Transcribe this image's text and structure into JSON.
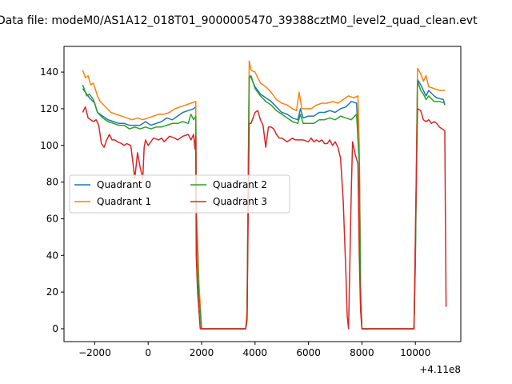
{
  "chart_data": {
    "type": "line",
    "title": "Data file: modeM0/AS1A12_018T01_9000005470_39388cztM0_level2_quad_clean.evt",
    "xlabel": "",
    "ylabel": "",
    "x_offset_label": "+4.11e8",
    "xlim": [
      -3150,
      11700
    ],
    "ylim": [
      -7,
      154
    ],
    "x_ticks": [
      -2000,
      0,
      2000,
      4000,
      6000,
      8000,
      10000
    ],
    "x_tick_labels": [
      "−2000",
      "0",
      "2000",
      "4000",
      "6000",
      "8000",
      "10000"
    ],
    "y_ticks": [
      0,
      20,
      40,
      60,
      80,
      100,
      120,
      140
    ],
    "y_tick_labels": [
      "0",
      "20",
      "40",
      "60",
      "80",
      "100",
      "120",
      "140"
    ],
    "grid": false,
    "legend_position": "center-left",
    "legend_columns": 2,
    "series": [
      {
        "name": "Quadrant 0",
        "color": "#1f77b4",
        "points": [
          [
            -2450,
            131
          ],
          [
            -2300,
            128
          ],
          [
            -2200,
            126
          ],
          [
            -2000,
            123
          ],
          [
            -1900,
            118
          ],
          [
            -1700,
            116
          ],
          [
            -1500,
            114
          ],
          [
            -1300,
            113
          ],
          [
            -1100,
            112
          ],
          [
            -900,
            112
          ],
          [
            -700,
            111
          ],
          [
            -500,
            111
          ],
          [
            -300,
            111
          ],
          [
            -100,
            113
          ],
          [
            100,
            111
          ],
          [
            300,
            112
          ],
          [
            500,
            113
          ],
          [
            700,
            115
          ],
          [
            900,
            114
          ],
          [
            1100,
            116
          ],
          [
            1300,
            118
          ],
          [
            1500,
            119
          ],
          [
            1700,
            120
          ],
          [
            1780,
            121
          ],
          [
            1800,
            65
          ],
          [
            1900,
            20
          ],
          [
            2000,
            0
          ],
          [
            3650,
            0
          ],
          [
            3700,
            8
          ],
          [
            3780,
            138
          ],
          [
            3850,
            137
          ],
          [
            4000,
            132
          ],
          [
            4200,
            128
          ],
          [
            4400,
            126
          ],
          [
            4600,
            124
          ],
          [
            4800,
            121
          ],
          [
            5000,
            118
          ],
          [
            5200,
            117
          ],
          [
            5400,
            115
          ],
          [
            5600,
            114
          ],
          [
            5700,
            120
          ],
          [
            5800,
            115
          ],
          [
            6000,
            116
          ],
          [
            6200,
            116
          ],
          [
            6400,
            118
          ],
          [
            6600,
            118
          ],
          [
            6800,
            119
          ],
          [
            7000,
            118
          ],
          [
            7200,
            120
          ],
          [
            7400,
            121
          ],
          [
            7600,
            124
          ],
          [
            7800,
            123
          ],
          [
            7900,
            95
          ],
          [
            7950,
            20
          ],
          [
            8000,
            0
          ],
          [
            9950,
            0
          ],
          [
            10000,
            40
          ],
          [
            10080,
            136
          ],
          [
            10200,
            133
          ],
          [
            10300,
            130
          ],
          [
            10400,
            127
          ],
          [
            10500,
            130
          ],
          [
            10700,
            127
          ],
          [
            10800,
            126
          ],
          [
            11050,
            125
          ],
          [
            11100,
            122
          ]
        ]
      },
      {
        "name": "Quadrant 1",
        "color": "#ff7f0e",
        "points": [
          [
            -2450,
            141
          ],
          [
            -2350,
            137
          ],
          [
            -2250,
            138
          ],
          [
            -2150,
            133
          ],
          [
            -2050,
            134
          ],
          [
            -1900,
            127
          ],
          [
            -1800,
            124
          ],
          [
            -1600,
            121
          ],
          [
            -1400,
            118
          ],
          [
            -1200,
            117
          ],
          [
            -1000,
            116
          ],
          [
            -800,
            115
          ],
          [
            -600,
            114
          ],
          [
            -400,
            115
          ],
          [
            -200,
            114
          ],
          [
            0,
            115
          ],
          [
            200,
            116
          ],
          [
            400,
            117
          ],
          [
            600,
            117
          ],
          [
            800,
            118
          ],
          [
            1000,
            120
          ],
          [
            1200,
            121
          ],
          [
            1400,
            122
          ],
          [
            1600,
            123
          ],
          [
            1780,
            124
          ],
          [
            1800,
            70
          ],
          [
            1900,
            25
          ],
          [
            2000,
            0
          ],
          [
            3650,
            0
          ],
          [
            3700,
            10
          ],
          [
            3780,
            146
          ],
          [
            3850,
            141
          ],
          [
            4000,
            140
          ],
          [
            4200,
            134
          ],
          [
            4400,
            132
          ],
          [
            4600,
            129
          ],
          [
            4800,
            125
          ],
          [
            5000,
            123
          ],
          [
            5200,
            122
          ],
          [
            5400,
            120
          ],
          [
            5550,
            119
          ],
          [
            5650,
            129
          ],
          [
            5750,
            120
          ],
          [
            5900,
            120
          ],
          [
            6100,
            120
          ],
          [
            6300,
            122
          ],
          [
            6500,
            123
          ],
          [
            6700,
            123
          ],
          [
            6900,
            124
          ],
          [
            7100,
            123
          ],
          [
            7300,
            125
          ],
          [
            7500,
            127
          ],
          [
            7700,
            126
          ],
          [
            7850,
            127
          ],
          [
            7900,
            100
          ],
          [
            7950,
            25
          ],
          [
            8000,
            0
          ],
          [
            9950,
            0
          ],
          [
            10000,
            45
          ],
          [
            10080,
            142
          ],
          [
            10200,
            139
          ],
          [
            10300,
            135
          ],
          [
            10400,
            138
          ],
          [
            10500,
            132
          ],
          [
            10700,
            131
          ],
          [
            10900,
            130
          ],
          [
            11100,
            130
          ]
        ]
      },
      {
        "name": "Quadrant 2",
        "color": "#2ca02c",
        "points": [
          [
            -2450,
            133
          ],
          [
            -2300,
            127
          ],
          [
            -2200,
            128
          ],
          [
            -2050,
            125
          ],
          [
            -1900,
            118
          ],
          [
            -1700,
            115
          ],
          [
            -1500,
            113
          ],
          [
            -1300,
            112
          ],
          [
            -1100,
            111
          ],
          [
            -900,
            111
          ],
          [
            -700,
            109
          ],
          [
            -500,
            110
          ],
          [
            -300,
            109
          ],
          [
            -100,
            110
          ],
          [
            100,
            109
          ],
          [
            300,
            110
          ],
          [
            500,
            110
          ],
          [
            700,
            111
          ],
          [
            900,
            112
          ],
          [
            1100,
            112
          ],
          [
            1300,
            113
          ],
          [
            1500,
            112
          ],
          [
            1600,
            117
          ],
          [
            1700,
            114
          ],
          [
            1780,
            116
          ],
          [
            1800,
            60
          ],
          [
            1900,
            18
          ],
          [
            2000,
            0
          ],
          [
            3650,
            0
          ],
          [
            3700,
            5
          ],
          [
            3780,
            137
          ],
          [
            3850,
            138
          ],
          [
            4000,
            131
          ],
          [
            4200,
            127
          ],
          [
            4400,
            124
          ],
          [
            4600,
            122
          ],
          [
            4800,
            119
          ],
          [
            5000,
            117
          ],
          [
            5200,
            115
          ],
          [
            5400,
            113
          ],
          [
            5600,
            112
          ],
          [
            5700,
            117
          ],
          [
            5800,
            112
          ],
          [
            6000,
            112
          ],
          [
            6200,
            112
          ],
          [
            6400,
            114
          ],
          [
            6600,
            114
          ],
          [
            6800,
            115
          ],
          [
            7000,
            114
          ],
          [
            7200,
            116
          ],
          [
            7400,
            115
          ],
          [
            7600,
            114
          ],
          [
            7800,
            117
          ],
          [
            7900,
            90
          ],
          [
            7950,
            18
          ],
          [
            8000,
            0
          ],
          [
            9950,
            0
          ],
          [
            10000,
            35
          ],
          [
            10080,
            135
          ],
          [
            10200,
            130
          ],
          [
            10300,
            128
          ],
          [
            10400,
            125
          ],
          [
            10500,
            127
          ],
          [
            10700,
            124
          ],
          [
            10900,
            124
          ],
          [
            11100,
            123
          ]
        ]
      },
      {
        "name": "Quadrant 3",
        "color": "#d62728",
        "points": [
          [
            -2450,
            118
          ],
          [
            -2350,
            121
          ],
          [
            -2250,
            115
          ],
          [
            -2150,
            114
          ],
          [
            -2050,
            113
          ],
          [
            -1950,
            114
          ],
          [
            -1850,
            111
          ],
          [
            -1750,
            101
          ],
          [
            -1650,
            99
          ],
          [
            -1550,
            103
          ],
          [
            -1450,
            106
          ],
          [
            -1350,
            103
          ],
          [
            -1250,
            103
          ],
          [
            -1150,
            102
          ],
          [
            -1000,
            101
          ],
          [
            -900,
            100
          ],
          [
            -800,
            101
          ],
          [
            -650,
            100
          ],
          [
            -500,
            82
          ],
          [
            -400,
            96
          ],
          [
            -300,
            88
          ],
          [
            -200,
            82
          ],
          [
            -150,
            99
          ],
          [
            -100,
            103
          ],
          [
            0,
            100
          ],
          [
            100,
            102
          ],
          [
            200,
            104
          ],
          [
            400,
            103
          ],
          [
            500,
            104
          ],
          [
            600,
            102
          ],
          [
            800,
            105
          ],
          [
            1000,
            104
          ],
          [
            1100,
            103
          ],
          [
            1300,
            105
          ],
          [
            1500,
            106
          ],
          [
            1600,
            103
          ],
          [
            1700,
            106
          ],
          [
            1750,
            98
          ],
          [
            1780,
            105
          ],
          [
            1800,
            40
          ],
          [
            1850,
            20
          ],
          [
            1950,
            0
          ],
          [
            3650,
            0
          ],
          [
            3700,
            5
          ],
          [
            3780,
            112
          ],
          [
            3850,
            112
          ],
          [
            4000,
            118
          ],
          [
            4100,
            119
          ],
          [
            4200,
            114
          ],
          [
            4300,
            111
          ],
          [
            4400,
            99
          ],
          [
            4500,
            110
          ],
          [
            4600,
            110
          ],
          [
            4700,
            109
          ],
          [
            4800,
            106
          ],
          [
            4900,
            104
          ],
          [
            5000,
            104
          ],
          [
            5100,
            103
          ],
          [
            5200,
            102
          ],
          [
            5400,
            104
          ],
          [
            5500,
            103
          ],
          [
            5600,
            103
          ],
          [
            5800,
            103
          ],
          [
            6000,
            102
          ],
          [
            6100,
            104
          ],
          [
            6200,
            102
          ],
          [
            6300,
            103
          ],
          [
            6400,
            102
          ],
          [
            6500,
            103
          ],
          [
            6600,
            101
          ],
          [
            6700,
            101
          ],
          [
            6800,
            103
          ],
          [
            6900,
            100
          ],
          [
            7000,
            102
          ],
          [
            7100,
            99
          ],
          [
            7200,
            93
          ],
          [
            7300,
            70
          ],
          [
            7400,
            30
          ],
          [
            7450,
            7
          ],
          [
            7500,
            0
          ],
          [
            7600,
            75
          ],
          [
            7650,
            102
          ],
          [
            7750,
            95
          ],
          [
            7850,
            90
          ],
          [
            7900,
            40
          ],
          [
            7950,
            10
          ],
          [
            8000,
            0
          ],
          [
            9950,
            0
          ],
          [
            10000,
            50
          ],
          [
            10080,
            120
          ],
          [
            10200,
            119
          ],
          [
            10300,
            114
          ],
          [
            10400,
            113
          ],
          [
            10500,
            114
          ],
          [
            10600,
            112
          ],
          [
            10700,
            113
          ],
          [
            10800,
            112
          ],
          [
            10900,
            110
          ],
          [
            11000,
            109
          ],
          [
            11100,
            108
          ],
          [
            11150,
            12
          ]
        ]
      }
    ]
  }
}
